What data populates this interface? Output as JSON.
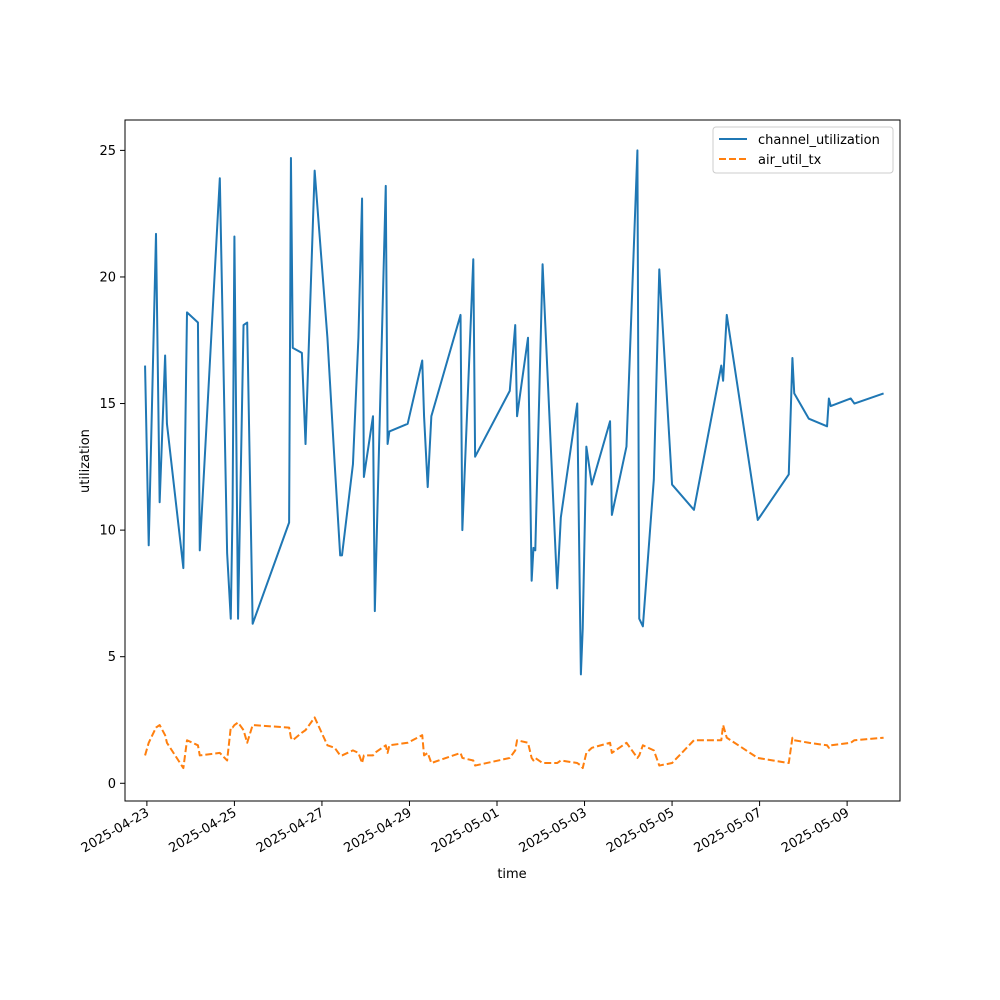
{
  "chart_data": {
    "type": "line",
    "title": "",
    "xlabel": "time",
    "ylabel": "utilization",
    "xlim": [
      "2025-04-22T12:00:00",
      "2025-05-10T05:00:00"
    ],
    "ylim": [
      -0.7,
      26.2
    ],
    "grid": false,
    "legend": "top-right",
    "x_ticks": [
      "2025-04-23",
      "2025-04-25",
      "2025-04-27",
      "2025-04-29",
      "2025-05-01",
      "2025-05-03",
      "2025-05-05",
      "2025-05-07",
      "2025-05-09"
    ],
    "y_ticks": [
      0,
      5,
      10,
      15,
      20,
      25
    ],
    "x": [
      "2025-04-22T23:00:00",
      "2025-04-23T01:00:00",
      "2025-04-23T05:00:00",
      "2025-04-23T07:00:00",
      "2025-04-23T10:00:00",
      "2025-04-23T11:00:00",
      "2025-04-23T20:00:00",
      "2025-04-23T22:00:00",
      "2025-04-24T04:00:00",
      "2025-04-24T05:00:00",
      "2025-04-24T16:00:00",
      "2025-04-24T20:00:00",
      "2025-04-24T22:00:00",
      "2025-04-24T23:00:00",
      "2025-04-25T00:00:00",
      "2025-04-25T02:00:00",
      "2025-04-25T05:00:00",
      "2025-04-25T07:00:00",
      "2025-04-25T10:00:00",
      "2025-04-26T06:00:00",
      "2025-04-26T07:00:00",
      "2025-04-26T08:00:00",
      "2025-04-26T13:00:00",
      "2025-04-26T15:00:00",
      "2025-04-26T20:00:00",
      "2025-04-27T03:00:00",
      "2025-04-27T07:00:00",
      "2025-04-27T10:00:00",
      "2025-04-27T11:00:00",
      "2025-04-27T17:00:00",
      "2025-04-27T20:00:00",
      "2025-04-27T22:00:00",
      "2025-04-27T23:00:00",
      "2025-04-28T04:00:00",
      "2025-04-28T05:00:00",
      "2025-04-28T11:00:00",
      "2025-04-28T12:00:00",
      "2025-04-28T13:00:00",
      "2025-04-28T23:00:00",
      "2025-04-29T07:00:00",
      "2025-04-29T08:00:00",
      "2025-04-29T10:00:00",
      "2025-04-29T12:00:00",
      "2025-04-30T04:00:00",
      "2025-04-30T05:00:00",
      "2025-04-30T11:00:00",
      "2025-04-30T12:00:00",
      "2025-05-01T07:00:00",
      "2025-05-01T10:00:00",
      "2025-05-01T11:00:00",
      "2025-05-01T17:00:00",
      "2025-05-01T19:00:00",
      "2025-05-01T20:00:00",
      "2025-05-01T21:00:00",
      "2025-05-02T01:00:00",
      "2025-05-02T09:00:00",
      "2025-05-02T11:00:00",
      "2025-05-02T20:00:00",
      "2025-05-02T22:00:00",
      "2025-05-02T23:00:00",
      "2025-05-03T01:00:00",
      "2025-05-03T04:00:00",
      "2025-05-03T14:00:00",
      "2025-05-03T15:00:00",
      "2025-05-03T23:00:00",
      "2025-05-04T05:00:00",
      "2025-05-04T06:00:00",
      "2025-05-04T08:00:00",
      "2025-05-04T14:00:00",
      "2025-05-04T17:00:00",
      "2025-05-05T00:00:00",
      "2025-05-05T12:00:00",
      "2025-05-06T03:00:00",
      "2025-05-06T04:00:00",
      "2025-05-06T06:00:00",
      "2025-05-06T23:00:00",
      "2025-05-07T16:00:00",
      "2025-05-07T18:00:00",
      "2025-05-07T19:00:00",
      "2025-05-08T03:00:00",
      "2025-05-08T13:00:00",
      "2025-05-08T14:00:00",
      "2025-05-08T15:00:00",
      "2025-05-09T02:00:00",
      "2025-05-09T04:00:00",
      "2025-05-09T20:00:00"
    ],
    "series": [
      {
        "name": "channel_utilization",
        "style": "solid",
        "color": "#1f77b4",
        "values": [
          16.5,
          9.4,
          21.7,
          11.1,
          16.9,
          14.2,
          8.5,
          18.6,
          18.2,
          9.2,
          23.9,
          9.1,
          6.5,
          10.9,
          21.6,
          6.5,
          18.1,
          18.2,
          6.3,
          10.3,
          24.7,
          17.2,
          17.0,
          13.4,
          24.2,
          17.6,
          12.6,
          9.0,
          9.0,
          12.6,
          17.6,
          23.1,
          12.1,
          14.5,
          6.8,
          23.6,
          13.4,
          13.9,
          14.2,
          16.7,
          14.5,
          11.7,
          14.5,
          18.5,
          10.0,
          20.7,
          12.9,
          15.5,
          18.1,
          14.5,
          17.6,
          8.0,
          9.3,
          9.2,
          20.5,
          7.7,
          10.5,
          15.0,
          4.3,
          6.1,
          13.3,
          11.8,
          14.3,
          10.6,
          13.3,
          25.0,
          6.5,
          6.2,
          12.0,
          20.3,
          11.8,
          10.8,
          16.5,
          15.9,
          18.5,
          10.4,
          12.2,
          16.8,
          15.4,
          14.4,
          14.1,
          15.2,
          14.9,
          15.2,
          15.0,
          15.4
        ],
        "values_note": ""
      },
      {
        "name": "air_util_tx",
        "style": "dashed",
        "color": "#ff7f0e",
        "values": [
          1.1,
          1.6,
          2.2,
          2.3,
          1.9,
          1.6,
          0.6,
          1.7,
          1.5,
          1.1,
          1.2,
          0.9,
          2.2,
          2.2,
          2.3,
          2.4,
          2.1,
          1.6,
          2.3,
          2.2,
          1.8,
          1.7,
          2.0,
          2.1,
          2.6,
          1.5,
          1.4,
          1.1,
          1.1,
          1.3,
          1.2,
          0.8,
          1.1,
          1.1,
          1.2,
          1.5,
          1.2,
          1.5,
          1.6,
          1.9,
          1.1,
          1.2,
          0.8,
          1.2,
          1.0,
          0.9,
          0.7,
          1.0,
          1.3,
          1.7,
          1.6,
          1.0,
          0.9,
          1.0,
          0.8,
          0.8,
          0.9,
          0.8,
          0.7,
          0.6,
          1.2,
          1.4,
          1.6,
          1.2,
          1.6,
          1.0,
          1.1,
          1.5,
          1.3,
          0.7,
          0.8,
          1.7,
          1.7,
          2.3,
          1.8,
          1.0,
          0.8,
          1.8,
          1.7,
          1.6,
          1.5,
          1.4,
          1.5,
          1.6,
          1.7,
          1.8
        ]
      }
    ]
  }
}
